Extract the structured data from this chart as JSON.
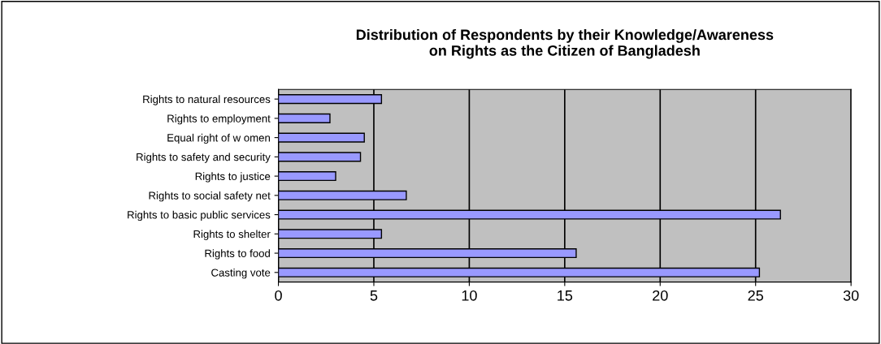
{
  "chart_data": {
    "type": "bar",
    "orientation": "horizontal",
    "title": "Distribution of Respondents by their Knowledge/Awareness\non Rights as the Citizen of Bangladesh",
    "categories": [
      "Rights to natural resources",
      "Rights to employment",
      "Equal right of w omen",
      "Rights to safety and security",
      "Rights to justice",
      "Rights to social safety net",
      "Rights to basic public services",
      "Rights to shelter",
      "Rights to food",
      "Casting vote"
    ],
    "values": [
      5.4,
      2.7,
      4.5,
      4.3,
      3.0,
      6.7,
      26.3,
      5.4,
      15.6,
      25.2
    ],
    "color": "#9999ff",
    "xlim": [
      0,
      30
    ],
    "xticks": [
      0,
      5,
      10,
      15,
      20,
      25,
      30
    ],
    "grid": "x",
    "legend": false
  }
}
